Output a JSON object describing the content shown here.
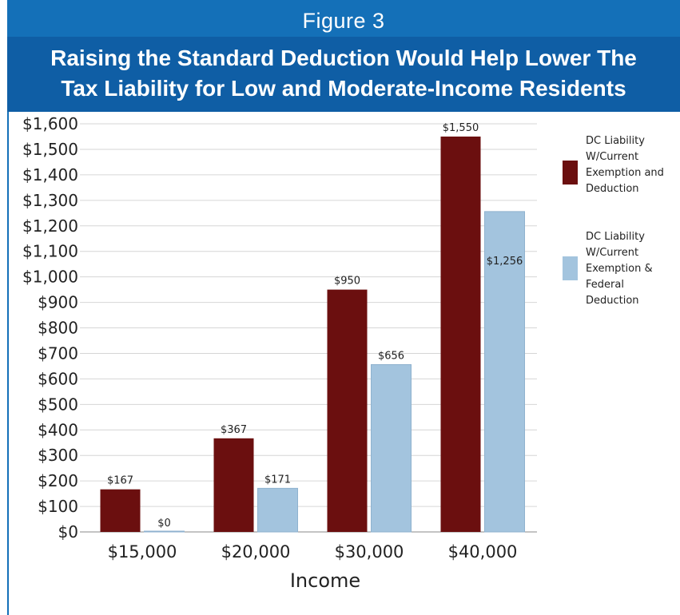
{
  "figure_label": "Figure 3",
  "title_line1": "Raising the Standard Deduction Would Help Lower The",
  "title_line2": "Tax Liability for Low and Moderate-Income Residents",
  "colors": {
    "header_bg": "#1470b8",
    "banner_bg": "#0f5ea5",
    "series_current": "#6b0f0f",
    "series_federal": "#a3c4de",
    "gridline": "#d6d6d6"
  },
  "chart_data": {
    "type": "bar",
    "title": "Raising the Standard Deduction Would Help Lower The Tax Liability for Low and Moderate-Income Residents",
    "xlabel": "Income",
    "ylabel": "",
    "categories": [
      "$15,000",
      "$20,000",
      "$30,000",
      "$40,000"
    ],
    "ylim": [
      0,
      1600
    ],
    "yticks": [
      0,
      100,
      200,
      300,
      400,
      500,
      600,
      700,
      800,
      900,
      1000,
      1100,
      1200,
      1300,
      1400,
      1500,
      1600
    ],
    "ytick_labels": [
      "$0",
      "$100",
      "$200",
      "$300",
      "$400",
      "$500",
      "$600",
      "$700",
      "$800",
      "$900",
      "$1,000",
      "$1,100",
      "$1,200",
      "$1,300",
      "$1,400",
      "$1,500",
      "$1,600"
    ],
    "grid": true,
    "legend_position": "right",
    "series": [
      {
        "name": "DC Liability W/Current Exemption and Deduction",
        "legend_lines": [
          "DC Liability",
          "W/Current",
          "Exemption and",
          "Deduction"
        ],
        "values": [
          167,
          367,
          950,
          1550
        ],
        "labels": [
          "$167",
          "$367",
          "$950",
          "$1,550"
        ],
        "label_position": "above"
      },
      {
        "name": "DC Liability W/Current Exemption & Federal Deduction",
        "legend_lines": [
          "DC Liability",
          "W/Current",
          "Exemption &",
          "Federal",
          "Deduction"
        ],
        "values": [
          0,
          171,
          656,
          1256
        ],
        "labels": [
          "$0",
          "$171",
          "$656",
          "$1,256"
        ],
        "label_position": [
          "above",
          "above",
          "above",
          "inside"
        ]
      }
    ]
  }
}
